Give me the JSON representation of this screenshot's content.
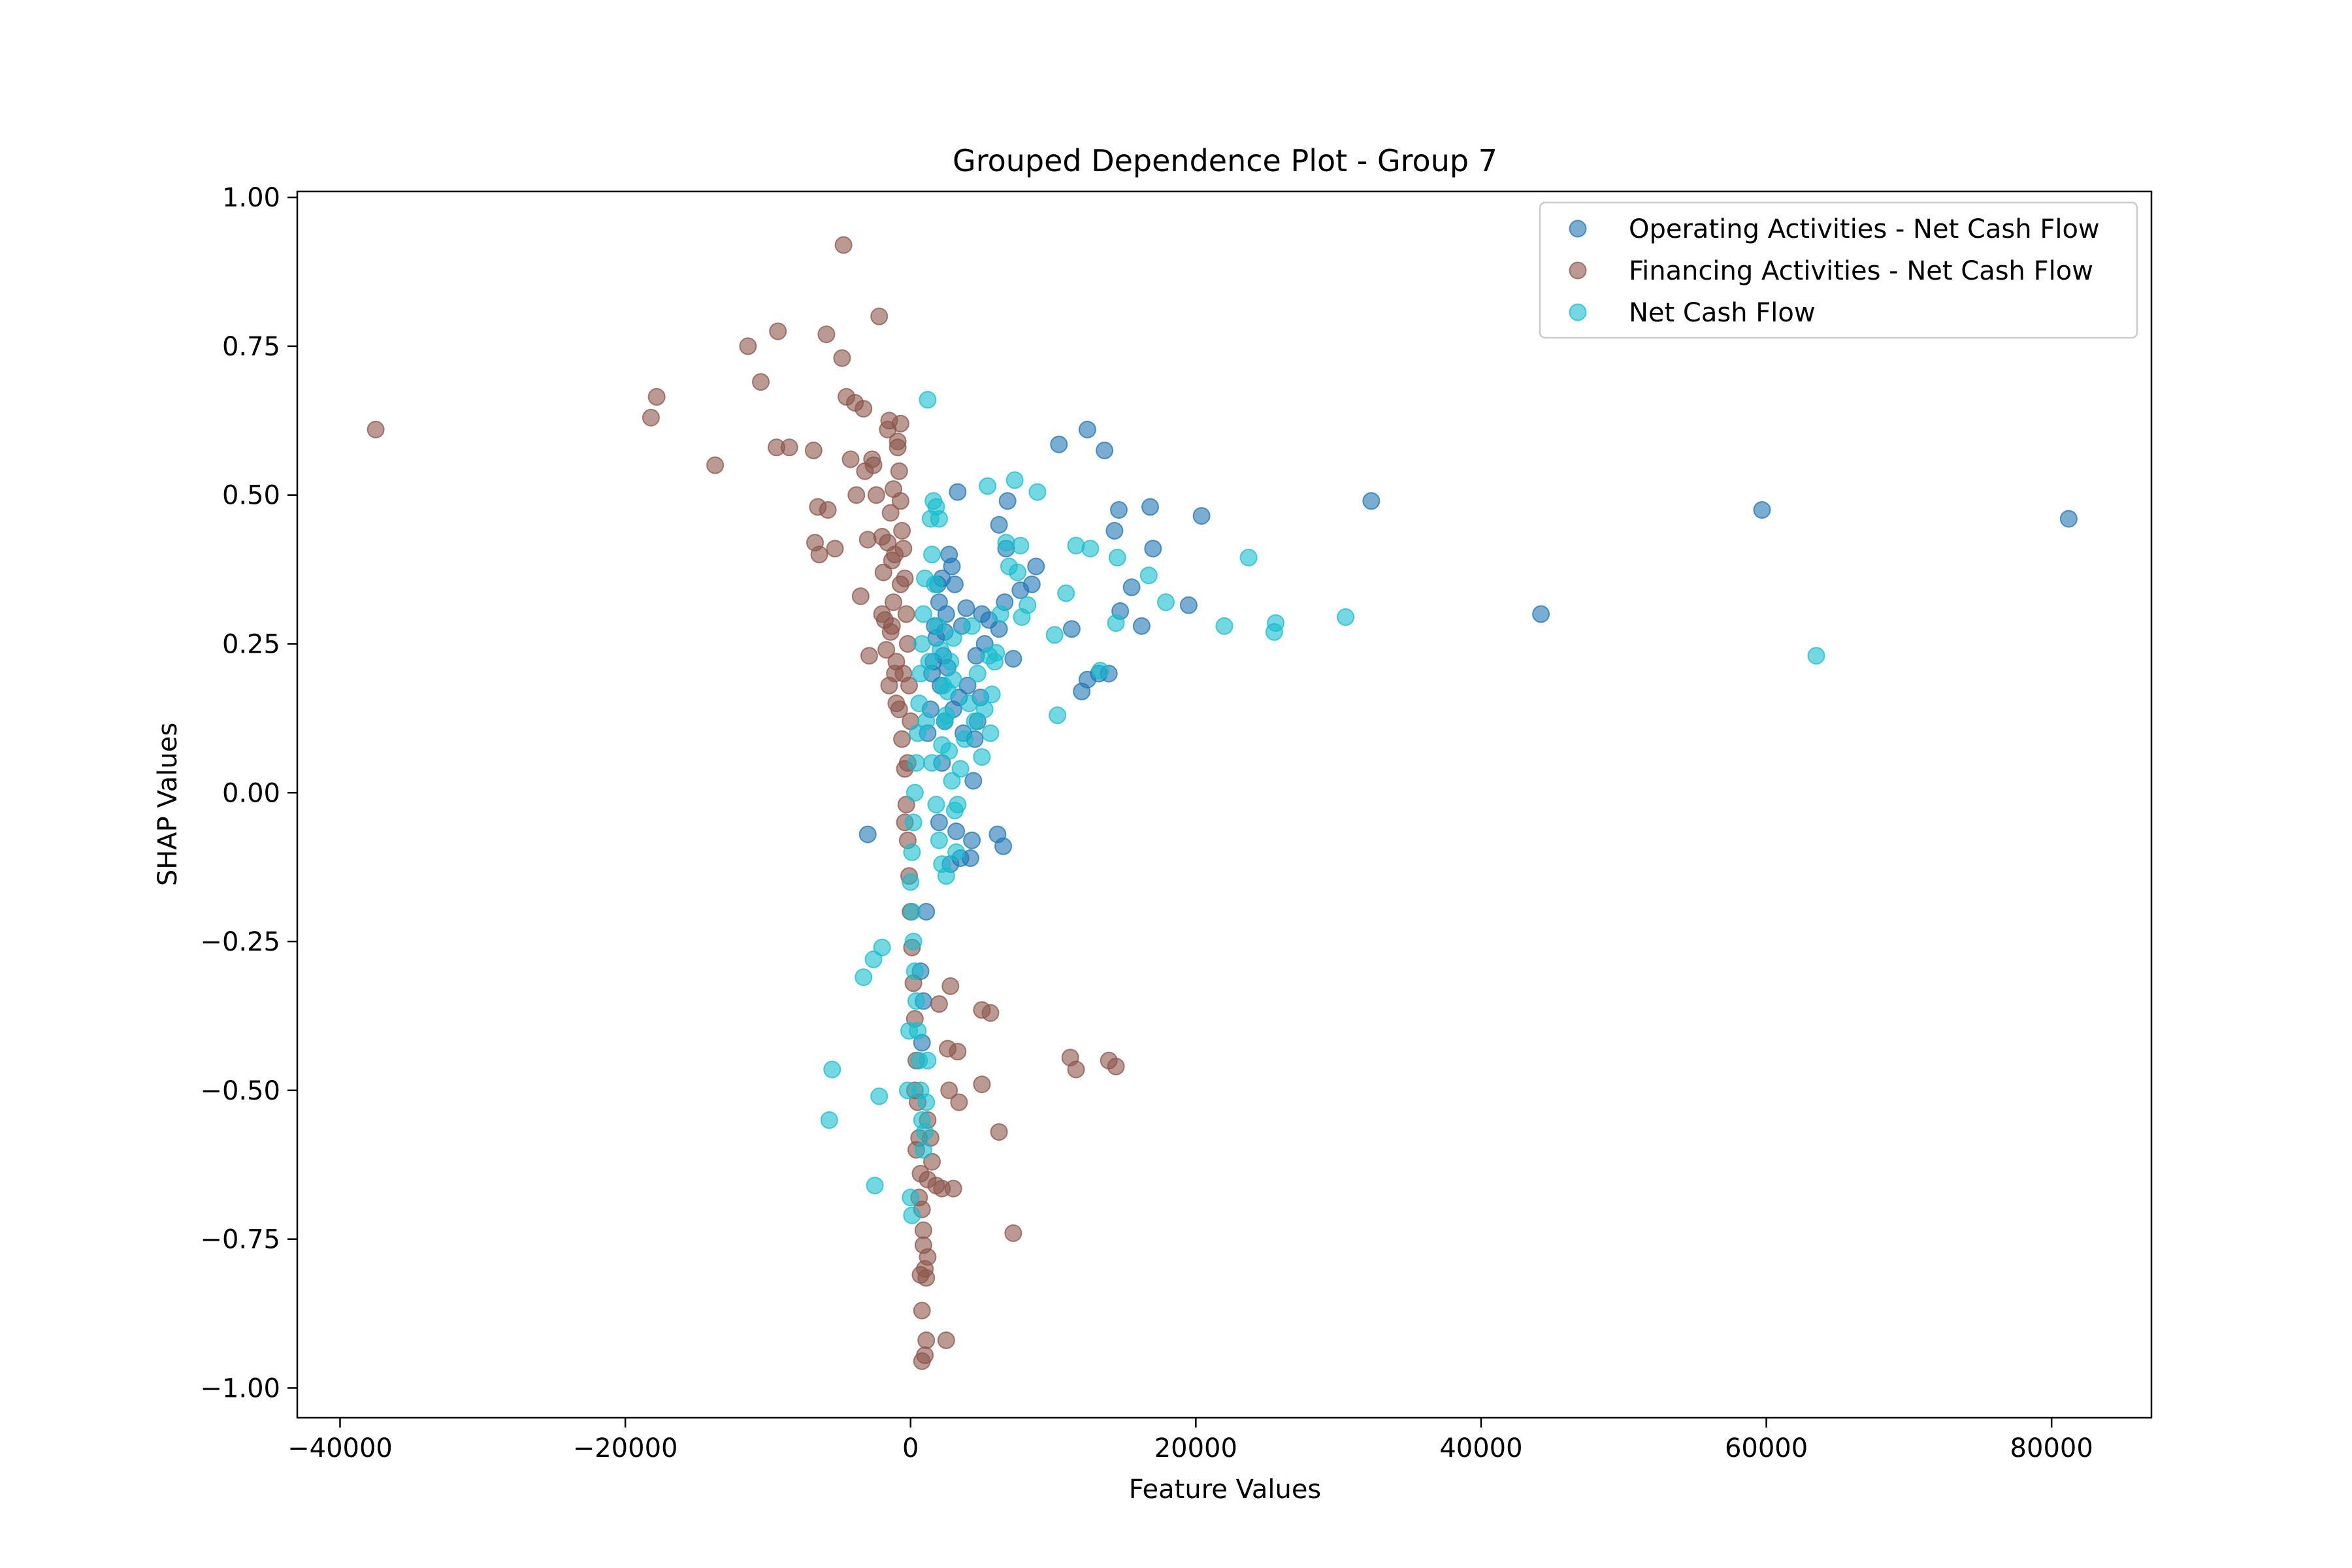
{
  "chart_data": {
    "type": "scatter",
    "title": "Grouped Dependence Plot - Group 7",
    "xlabel": "Feature Values",
    "ylabel": "SHAP Values",
    "xlim": [
      -43000,
      87000
    ],
    "ylim": [
      -1.05,
      1.01
    ],
    "xticks": [
      {
        "value": -40000,
        "label": "−40000"
      },
      {
        "value": -20000,
        "label": "−20000"
      },
      {
        "value": 0,
        "label": "0"
      },
      {
        "value": 20000,
        "label": "20000"
      },
      {
        "value": 40000,
        "label": "40000"
      },
      {
        "value": 60000,
        "label": "60000"
      },
      {
        "value": 80000,
        "label": "80000"
      }
    ],
    "yticks": [
      {
        "value": 1.0,
        "label": "1.00"
      },
      {
        "value": 0.75,
        "label": "0.75"
      },
      {
        "value": 0.5,
        "label": "0.50"
      },
      {
        "value": 0.25,
        "label": "0.25"
      },
      {
        "value": 0.0,
        "label": "0.00"
      },
      {
        "value": -0.25,
        "label": "−0.25"
      },
      {
        "value": -0.5,
        "label": "−0.50"
      },
      {
        "value": -0.75,
        "label": "−0.75"
      },
      {
        "value": -1.0,
        "label": "−1.00"
      }
    ],
    "grid": false,
    "legend_position": "top-right",
    "series": [
      {
        "name": "Operating Activities - Net Cash Flow",
        "color": "#1f77b4",
        "points": [
          [
            81200,
            0.46
          ],
          [
            59700,
            0.475
          ],
          [
            44200,
            0.3
          ],
          [
            32300,
            0.49
          ],
          [
            20400,
            0.465
          ],
          [
            19500,
            0.315
          ],
          [
            16800,
            0.48
          ],
          [
            17000,
            0.41
          ],
          [
            15500,
            0.345
          ],
          [
            16200,
            0.28
          ],
          [
            14600,
            0.475
          ],
          [
            14300,
            0.44
          ],
          [
            14700,
            0.305
          ],
          [
            13900,
            0.2
          ],
          [
            13200,
            0.2
          ],
          [
            12400,
            0.19
          ],
          [
            12000,
            0.17
          ],
          [
            11300,
            0.275
          ],
          [
            12400,
            0.61
          ],
          [
            13600,
            0.575
          ],
          [
            10400,
            0.585
          ],
          [
            8800,
            0.38
          ],
          [
            8500,
            0.35
          ],
          [
            7700,
            0.34
          ],
          [
            7200,
            0.225
          ],
          [
            6800,
            0.49
          ],
          [
            6700,
            0.41
          ],
          [
            6600,
            0.32
          ],
          [
            6200,
            0.45
          ],
          [
            6200,
            0.275
          ],
          [
            6100,
            -0.07
          ],
          [
            6500,
            -0.09
          ],
          [
            5500,
            0.29
          ],
          [
            5200,
            0.25
          ],
          [
            4900,
            0.16
          ],
          [
            4700,
            0.12
          ],
          [
            4500,
            0.09
          ],
          [
            4400,
            0.02
          ],
          [
            4300,
            -0.08
          ],
          [
            4200,
            -0.11
          ],
          [
            3900,
            0.31
          ],
          [
            3600,
            0.28
          ],
          [
            3400,
            0.16
          ],
          [
            3300,
            0.505
          ],
          [
            3100,
            0.35
          ],
          [
            2900,
            0.38
          ],
          [
            2700,
            0.4
          ],
          [
            2500,
            0.3
          ],
          [
            2300,
            0.23
          ],
          [
            2100,
            0.18
          ],
          [
            1900,
            0.35
          ],
          [
            1700,
            0.28
          ],
          [
            1500,
            0.2
          ],
          [
            3200,
            -0.065
          ],
          [
            3500,
            -0.11
          ],
          [
            2800,
            -0.12
          ],
          [
            2600,
            0.21
          ],
          [
            2400,
            0.12
          ],
          [
            2200,
            0.05
          ],
          [
            2000,
            -0.05
          ],
          [
            -3000,
            -0.07
          ],
          [
            1200,
            0.1
          ],
          [
            1400,
            0.14
          ],
          [
            1600,
            0.22
          ],
          [
            1800,
            0.26
          ],
          [
            2000,
            0.32
          ],
          [
            2200,
            0.36
          ],
          [
            2400,
            0.27
          ],
          [
            3000,
            0.14
          ],
          [
            3700,
            0.1
          ],
          [
            4000,
            0.18
          ],
          [
            4600,
            0.23
          ],
          [
            5000,
            0.3
          ],
          [
            1100,
            -0.2
          ],
          [
            900,
            -0.35
          ],
          [
            800,
            -0.42
          ],
          [
            700,
            -0.3
          ]
        ]
      },
      {
        "name": "Financing Activities - Net Cash Flow",
        "color": "#8c564b",
        "points": [
          [
            -37500,
            0.61
          ],
          [
            -18200,
            0.63
          ],
          [
            -17800,
            0.665
          ],
          [
            -13700,
            0.55
          ],
          [
            -11400,
            0.75
          ],
          [
            -10500,
            0.69
          ],
          [
            -9300,
            0.775
          ],
          [
            -9400,
            0.58
          ],
          [
            -8500,
            0.58
          ],
          [
            -6800,
            0.575
          ],
          [
            -6500,
            0.48
          ],
          [
            -6700,
            0.42
          ],
          [
            -6400,
            0.4
          ],
          [
            -5900,
            0.77
          ],
          [
            -5800,
            0.475
          ],
          [
            -5300,
            0.41
          ],
          [
            -4800,
            0.73
          ],
          [
            -4700,
            0.92
          ],
          [
            -4500,
            0.665
          ],
          [
            -4200,
            0.56
          ],
          [
            -3900,
            0.655
          ],
          [
            -3800,
            0.5
          ],
          [
            -3500,
            0.33
          ],
          [
            -3300,
            0.645
          ],
          [
            -3200,
            0.54
          ],
          [
            -3000,
            0.425
          ],
          [
            -2900,
            0.23
          ],
          [
            -2700,
            0.56
          ],
          [
            -2600,
            0.55
          ],
          [
            -2400,
            0.5
          ],
          [
            -2200,
            0.8
          ],
          [
            -2000,
            0.43
          ],
          [
            -1900,
            0.37
          ],
          [
            -1800,
            0.29
          ],
          [
            -1700,
            0.24
          ],
          [
            -1600,
            0.61
          ],
          [
            -1500,
            0.625
          ],
          [
            -1400,
            0.47
          ],
          [
            -1300,
            0.39
          ],
          [
            -1200,
            0.32
          ],
          [
            -1100,
            0.2
          ],
          [
            -1000,
            0.15
          ],
          [
            -900,
            0.59
          ],
          [
            -800,
            0.54
          ],
          [
            -700,
            0.49
          ],
          [
            -600,
            0.44
          ],
          [
            -500,
            0.41
          ],
          [
            -400,
            0.36
          ],
          [
            -300,
            0.3
          ],
          [
            -200,
            0.25
          ],
          [
            -100,
            0.18
          ],
          [
            0,
            0.12
          ],
          [
            -700,
            0.62
          ],
          [
            -900,
            0.58
          ],
          [
            -1200,
            0.51
          ],
          [
            -1600,
            0.42
          ],
          [
            -2000,
            0.3
          ],
          [
            -1400,
            0.27
          ],
          [
            -1000,
            0.22
          ],
          [
            -800,
            0.14
          ],
          [
            -600,
            0.09
          ],
          [
            -400,
            0.04
          ],
          [
            -300,
            -0.02
          ],
          [
            -200,
            -0.08
          ],
          [
            -100,
            -0.14
          ],
          [
            0,
            -0.2
          ],
          [
            100,
            -0.26
          ],
          [
            200,
            -0.32
          ],
          [
            300,
            -0.38
          ],
          [
            400,
            -0.45
          ],
          [
            500,
            -0.52
          ],
          [
            600,
            -0.58
          ],
          [
            700,
            -0.64
          ],
          [
            800,
            -0.7
          ],
          [
            900,
            -0.76
          ],
          [
            1000,
            -0.8
          ],
          [
            800,
            -0.87
          ],
          [
            1100,
            -0.92
          ],
          [
            800,
            -0.955
          ],
          [
            1000,
            -0.945
          ],
          [
            2500,
            -0.92
          ],
          [
            1200,
            -0.65
          ],
          [
            1500,
            -0.62
          ],
          [
            1800,
            -0.66
          ],
          [
            2200,
            -0.665
          ],
          [
            3000,
            -0.665
          ],
          [
            2600,
            -0.43
          ],
          [
            3300,
            -0.435
          ],
          [
            2800,
            -0.325
          ],
          [
            2000,
            -0.355
          ],
          [
            5000,
            -0.365
          ],
          [
            5600,
            -0.37
          ],
          [
            5000,
            -0.49
          ],
          [
            2700,
            -0.5
          ],
          [
            3400,
            -0.52
          ],
          [
            6200,
            -0.57
          ],
          [
            7200,
            -0.74
          ],
          [
            11200,
            -0.445
          ],
          [
            11600,
            -0.465
          ],
          [
            13900,
            -0.45
          ],
          [
            14400,
            -0.46
          ],
          [
            1200,
            -0.55
          ],
          [
            1400,
            -0.58
          ],
          [
            900,
            -0.735
          ],
          [
            1200,
            -0.78
          ],
          [
            700,
            -0.81
          ],
          [
            1100,
            -0.815
          ],
          [
            600,
            -0.68
          ],
          [
            400,
            -0.6
          ],
          [
            300,
            -0.5
          ],
          [
            -200,
            0.05
          ],
          [
            -400,
            -0.05
          ],
          [
            -500,
            0.2
          ],
          [
            -700,
            0.35
          ],
          [
            -1100,
            0.4
          ],
          [
            -1300,
            0.28
          ],
          [
            -1500,
            0.18
          ]
        ]
      },
      {
        "name": "Net Cash Flow",
        "color": "#17becf",
        "points": [
          [
            63500,
            0.23
          ],
          [
            30500,
            0.295
          ],
          [
            25600,
            0.285
          ],
          [
            25500,
            0.27
          ],
          [
            23700,
            0.395
          ],
          [
            22000,
            0.28
          ],
          [
            17900,
            0.32
          ],
          [
            16700,
            0.365
          ],
          [
            14400,
            0.285
          ],
          [
            14500,
            0.395
          ],
          [
            13300,
            0.205
          ],
          [
            12600,
            0.41
          ],
          [
            11600,
            0.415
          ],
          [
            10900,
            0.335
          ],
          [
            10300,
            0.13
          ],
          [
            10100,
            0.265
          ],
          [
            8900,
            0.505
          ],
          [
            8200,
            0.315
          ],
          [
            7800,
            0.295
          ],
          [
            7500,
            0.37
          ],
          [
            7700,
            0.415
          ],
          [
            7300,
            0.525
          ],
          [
            6900,
            0.38
          ],
          [
            6700,
            0.42
          ],
          [
            6300,
            0.3
          ],
          [
            6000,
            0.235
          ],
          [
            5900,
            0.22
          ],
          [
            5700,
            0.165
          ],
          [
            5600,
            0.1
          ],
          [
            5400,
            0.515
          ],
          [
            5200,
            0.14
          ],
          [
            5000,
            0.06
          ],
          [
            4700,
            0.2
          ],
          [
            4300,
            0.28
          ],
          [
            4100,
            0.15
          ],
          [
            3800,
            0.09
          ],
          [
            3500,
            0.04
          ],
          [
            3300,
            -0.02
          ],
          [
            3200,
            -0.1
          ],
          [
            3000,
            0.26
          ],
          [
            2800,
            0.22
          ],
          [
            2600,
            0.17
          ],
          [
            2400,
            0.12
          ],
          [
            2200,
            0.08
          ],
          [
            2000,
            0.46
          ],
          [
            1800,
            0.48
          ],
          [
            1600,
            0.49
          ],
          [
            1400,
            0.46
          ],
          [
            1200,
            0.66
          ],
          [
            1000,
            0.36
          ],
          [
            900,
            0.3
          ],
          [
            800,
            0.25
          ],
          [
            700,
            0.2
          ],
          [
            600,
            0.15
          ],
          [
            500,
            0.1
          ],
          [
            400,
            0.05
          ],
          [
            300,
            0.0
          ],
          [
            200,
            -0.05
          ],
          [
            100,
            -0.1
          ],
          [
            0,
            -0.15
          ],
          [
            100,
            -0.2
          ],
          [
            200,
            -0.25
          ],
          [
            300,
            -0.3
          ],
          [
            400,
            -0.35
          ],
          [
            500,
            -0.4
          ],
          [
            600,
            -0.45
          ],
          [
            700,
            -0.5
          ],
          [
            800,
            -0.55
          ],
          [
            900,
            -0.6
          ],
          [
            1000,
            -0.57
          ],
          [
            1100,
            -0.52
          ],
          [
            1200,
            -0.45
          ],
          [
            -3300,
            -0.31
          ],
          [
            -2600,
            -0.28
          ],
          [
            -2000,
            -0.26
          ],
          [
            -2200,
            -0.51
          ],
          [
            -5500,
            -0.465
          ],
          [
            -5700,
            -0.55
          ],
          [
            -2500,
            -0.66
          ],
          [
            0,
            -0.68
          ],
          [
            100,
            -0.71
          ],
          [
            -200,
            -0.5
          ],
          [
            -100,
            -0.4
          ],
          [
            1500,
            0.4
          ],
          [
            1700,
            0.35
          ],
          [
            1900,
            0.28
          ],
          [
            2100,
            0.24
          ],
          [
            2300,
            0.18
          ],
          [
            2500,
            0.13
          ],
          [
            2700,
            0.07
          ],
          [
            2900,
            0.02
          ],
          [
            3100,
            -0.03
          ],
          [
            1300,
            0.22
          ],
          [
            1100,
            0.12
          ],
          [
            1500,
            0.05
          ],
          [
            1800,
            -0.02
          ],
          [
            2000,
            -0.08
          ],
          [
            2200,
            -0.12
          ],
          [
            2500,
            -0.14
          ],
          [
            3000,
            0.19
          ],
          [
            4500,
            0.12
          ],
          [
            5500,
            0.23
          ]
        ]
      }
    ]
  }
}
